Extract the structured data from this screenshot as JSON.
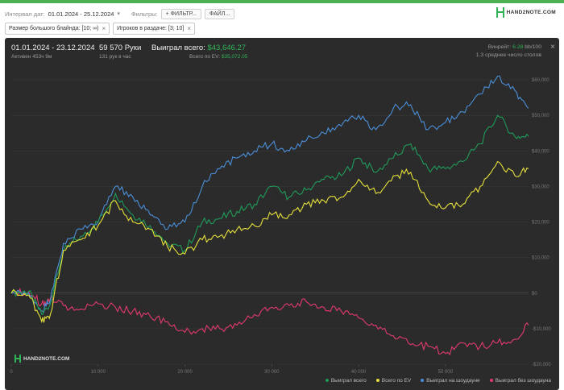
{
  "filters": {
    "date_label": "Интервал дат:",
    "date_value": "01.01.2024 - 25.12.2024",
    "filters_label": "Фильтры:",
    "filter_button": "+ ФИЛЬТР...",
    "file_button": "ФАЙЛ...",
    "tags": [
      "Размер большого блайнда: [10; ∞)",
      "Игроков в раздаче: [3; 10]"
    ]
  },
  "logo": "HAND2NOTE.COM",
  "summary": {
    "date_range": "01.01.2024 - 23.12.2024",
    "active": "Активен 453ч 9м",
    "hands": "59 570 Руки",
    "per_hour": "131 рук в час",
    "won_label": "Выиграл всего:",
    "won_value": "$43,646.27",
    "ev_label": "Всего по EV:",
    "ev_value": "$35,072.05",
    "winrate_label": "Винрейт:",
    "winrate_value": "6.28",
    "winrate_suffix": "bb/100",
    "tables": "1.3 среднее число столов"
  },
  "chart_data": {
    "type": "line",
    "xlim": [
      0,
      59570
    ],
    "ylim": [
      -20000,
      65000
    ],
    "x_ticks": [
      0,
      10000,
      20000,
      30000,
      40000,
      50000
    ],
    "x_tick_labels": [
      "0",
      "10 000",
      "20 000",
      "30 000",
      "40 000",
      "50 000"
    ],
    "y_ticks": [
      60000,
      50000,
      40000,
      30000,
      20000,
      10000,
      0,
      -10000,
      -20000
    ],
    "y_tick_labels": [
      "$60,000",
      "$50,000",
      "$40,000",
      "$30,000",
      "$20,000",
      "$10,000",
      "$0",
      "-$10,000",
      "-$20,000"
    ],
    "x": [
      0,
      2000,
      3500,
      4500,
      6000,
      8000,
      10000,
      12000,
      14000,
      16000,
      18000,
      20000,
      22000,
      24000,
      26000,
      28000,
      30000,
      32000,
      34000,
      36000,
      38000,
      40000,
      42000,
      44000,
      46000,
      48000,
      50000,
      52000,
      54000,
      56000,
      58000,
      59570
    ],
    "series": [
      {
        "name": "Выиграл всего",
        "color": "#1f9b5a",
        "values": [
          0,
          500,
          -6000,
          -3000,
          12000,
          16000,
          20000,
          28000,
          22000,
          19000,
          14000,
          12000,
          20000,
          21000,
          23000,
          25000,
          30000,
          27000,
          29000,
          32000,
          33000,
          38000,
          34000,
          38000,
          42000,
          35000,
          35000,
          37000,
          42000,
          50000,
          44000,
          44000
        ]
      },
      {
        "name": "Всего по EV",
        "color": "#e6e23a",
        "values": [
          0,
          -500,
          -8000,
          -6000,
          12000,
          15000,
          19000,
          26000,
          20000,
          18000,
          13000,
          11000,
          15000,
          16000,
          18000,
          19000,
          22000,
          22000,
          25000,
          26000,
          27000,
          32000,
          28000,
          33000,
          34000,
          26000,
          24000,
          25000,
          30000,
          37000,
          33000,
          35000
        ]
      },
      {
        "name": "Выиграл на шоудауне",
        "color": "#4a8fd8",
        "values": [
          0,
          0,
          -5000,
          -2000,
          14000,
          18000,
          20000,
          30000,
          27000,
          22000,
          18000,
          20000,
          30000,
          35000,
          38000,
          40000,
          42000,
          40000,
          43000,
          45000,
          47000,
          50000,
          46000,
          52000,
          53000,
          46000,
          48000,
          51000,
          56000,
          61000,
          57000,
          52000
        ]
      },
      {
        "name": "Выиграл без шоудауна",
        "color": "#e23a6c",
        "values": [
          0,
          500,
          -3000,
          -1500,
          -3500,
          -4500,
          -3000,
          -4000,
          -5000,
          -6500,
          -8000,
          -11000,
          -10000,
          -10000,
          -9000,
          -6000,
          -4000,
          -3500,
          -2500,
          -4000,
          -5000,
          -7000,
          -9000,
          -12000,
          -14500,
          -15000,
          -17000,
          -14000,
          -15000,
          -14000,
          -13000,
          -9000
        ]
      }
    ]
  }
}
